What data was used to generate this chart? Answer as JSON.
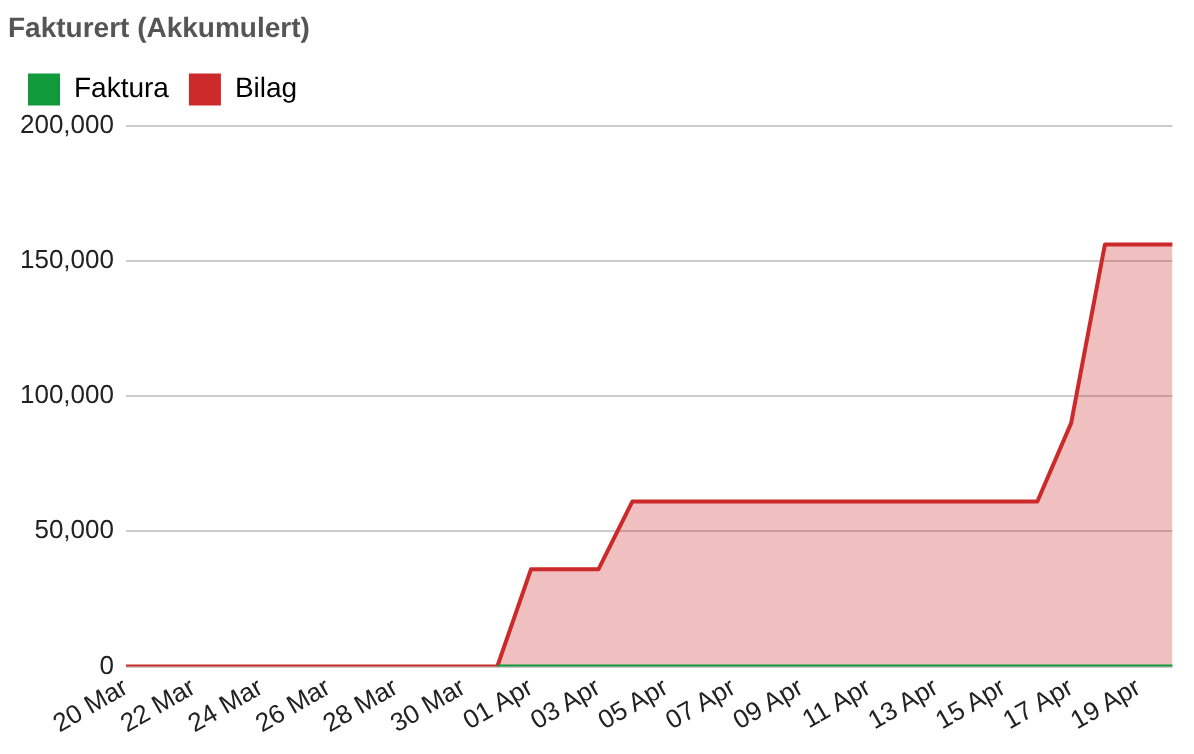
{
  "chart_data": {
    "type": "area",
    "title": "Fakturert (Akkumulert)",
    "categories": [
      "20 Mar",
      null,
      "22 Mar",
      null,
      "24 Mar",
      null,
      "26 Mar",
      null,
      "28 Mar",
      null,
      "30 Mar",
      null,
      "01 Apr",
      null,
      "03 Apr",
      null,
      "05 Apr",
      null,
      "07 Apr",
      null,
      "09 Apr",
      null,
      "11 Apr",
      null,
      "13 Apr",
      null,
      "15 Apr",
      null,
      "17 Apr",
      null,
      "19 Apr",
      null
    ],
    "series": [
      {
        "name": "Faktura",
        "type": "line",
        "color": "#109a3c",
        "values": [
          null,
          null,
          null,
          null,
          null,
          null,
          null,
          null,
          null,
          null,
          null,
          0,
          0,
          0,
          0,
          0,
          0,
          0,
          0,
          0,
          0,
          0,
          0,
          0,
          0,
          0,
          0,
          0,
          0,
          0,
          0,
          0
        ]
      },
      {
        "name": "Bilag",
        "color": "#cc2a2a",
        "values": [
          0,
          0,
          0,
          0,
          0,
          0,
          0,
          0,
          0,
          0,
          0,
          0,
          36000,
          36000,
          36000,
          61000,
          61000,
          61000,
          61000,
          61000,
          61000,
          61000,
          61000,
          61000,
          61000,
          61000,
          61000,
          61000,
          90000,
          156000,
          156000,
          156000
        ]
      }
    ],
    "ylim": [
      0,
      200000
    ],
    "yticks": [
      0,
      {
        "value": 50000,
        "label": "50,000"
      },
      {
        "value": 100000,
        "label": "100,000"
      },
      {
        "value": 150000,
        "label": "150,000"
      },
      {
        "value": 200000,
        "label": "200,000"
      }
    ],
    "grid": "y",
    "legend": "top left",
    "marker": "none",
    "line_style": "solid"
  }
}
